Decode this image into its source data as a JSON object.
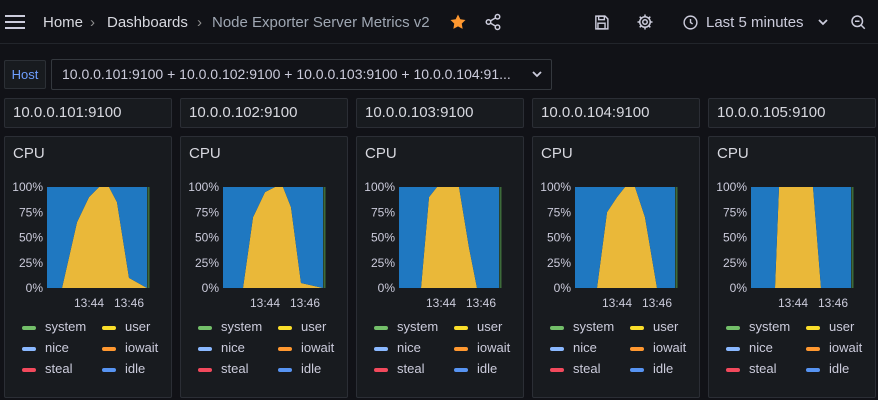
{
  "breadcrumb": {
    "home": "Home",
    "dashboards": "Dashboards",
    "current": "Node Exporter Server Metrics v2"
  },
  "toolbar": {
    "time_range": "Last 5 minutes",
    "star_color": "#ff9830"
  },
  "variable": {
    "label": "Host",
    "value": "10.0.0.101:9100 + 10.0.0.102:9100 + 10.0.0.103:9100 + 10.0.0.104:91..."
  },
  "panels": [
    {
      "host": "10.0.0.101:9100",
      "title": "CPU"
    },
    {
      "host": "10.0.0.102:9100",
      "title": "CPU"
    },
    {
      "host": "10.0.0.103:9100",
      "title": "CPU"
    },
    {
      "host": "10.0.0.104:9100",
      "title": "CPU"
    },
    {
      "host": "10.0.0.105:9100",
      "title": "CPU"
    }
  ],
  "legend": [
    {
      "name": "system",
      "color": "#73bf69"
    },
    {
      "name": "user",
      "color": "#fade2a"
    },
    {
      "name": "nice",
      "color": "#8ab8ff"
    },
    {
      "name": "iowait",
      "color": "#ff9830"
    },
    {
      "name": "steal",
      "color": "#f2495c"
    },
    {
      "name": "idle",
      "color": "#5794f2"
    }
  ],
  "chart_data": [
    {
      "type": "area",
      "y_ticks": [
        "100%",
        "75%",
        "50%",
        "25%",
        "0%"
      ],
      "x_ticks": [
        "13:44",
        "13:46"
      ],
      "ylim": [
        0,
        100
      ],
      "x_range": [
        0,
        1
      ],
      "x": [
        0,
        0.15,
        0.3,
        0.42,
        0.52,
        0.62,
        0.7,
        0.82,
        1
      ],
      "series": [
        {
          "name": "user",
          "values": [
            0,
            0,
            65,
            90,
            100,
            100,
            85,
            10,
            0
          ]
        },
        {
          "name": "idle",
          "values": [
            100,
            100,
            35,
            10,
            0,
            0,
            15,
            90,
            100
          ]
        }
      ]
    },
    {
      "type": "area",
      "y_ticks": [
        "100%",
        "75%",
        "50%",
        "25%",
        "0%"
      ],
      "x_ticks": [
        "13:44",
        "13:46"
      ],
      "ylim": [
        0,
        100
      ],
      "x_range": [
        0,
        1
      ],
      "x": [
        0,
        0.2,
        0.3,
        0.42,
        0.52,
        0.6,
        0.68,
        0.78,
        1
      ],
      "series": [
        {
          "name": "user",
          "values": [
            0,
            0,
            70,
            95,
            100,
            100,
            80,
            5,
            0
          ]
        },
        {
          "name": "idle",
          "values": [
            100,
            100,
            30,
            5,
            0,
            0,
            20,
            95,
            100
          ]
        }
      ]
    },
    {
      "type": "area",
      "y_ticks": [
        "100%",
        "75%",
        "50%",
        "25%",
        "0%"
      ],
      "x_ticks": [
        "13:44",
        "13:46"
      ],
      "ylim": [
        0,
        100
      ],
      "x_range": [
        0,
        1
      ],
      "x": [
        0,
        0.22,
        0.3,
        0.38,
        0.5,
        0.6,
        0.7,
        0.78,
        1
      ],
      "series": [
        {
          "name": "user",
          "values": [
            0,
            0,
            90,
            100,
            100,
            100,
            40,
            0,
            0
          ]
        },
        {
          "name": "idle",
          "values": [
            100,
            100,
            10,
            0,
            0,
            0,
            60,
            100,
            100
          ]
        }
      ]
    },
    {
      "type": "area",
      "y_ticks": [
        "100%",
        "75%",
        "50%",
        "25%",
        "0%"
      ],
      "x_ticks": [
        "13:44",
        "13:46"
      ],
      "ylim": [
        0,
        100
      ],
      "x_range": [
        0,
        1
      ],
      "x": [
        0,
        0.22,
        0.32,
        0.42,
        0.5,
        0.6,
        0.7,
        0.82,
        1
      ],
      "series": [
        {
          "name": "user",
          "values": [
            0,
            0,
            75,
            90,
            100,
            100,
            70,
            0,
            0
          ]
        },
        {
          "name": "idle",
          "values": [
            100,
            100,
            25,
            10,
            0,
            0,
            30,
            100,
            100
          ]
        }
      ]
    },
    {
      "type": "area",
      "y_ticks": [
        "100%",
        "75%",
        "50%",
        "25%",
        "0%"
      ],
      "x_ticks": [
        "13:44",
        "13:46"
      ],
      "ylim": [
        0,
        100
      ],
      "x_range": [
        0,
        1
      ],
      "x": [
        0,
        0.24,
        0.28,
        0.4,
        0.5,
        0.58,
        0.62,
        0.7,
        1
      ],
      "series": [
        {
          "name": "user",
          "values": [
            0,
            0,
            100,
            100,
            100,
            100,
            100,
            0,
            0
          ]
        },
        {
          "name": "idle",
          "values": [
            100,
            100,
            0,
            0,
            0,
            0,
            0,
            100,
            100
          ]
        }
      ]
    }
  ]
}
